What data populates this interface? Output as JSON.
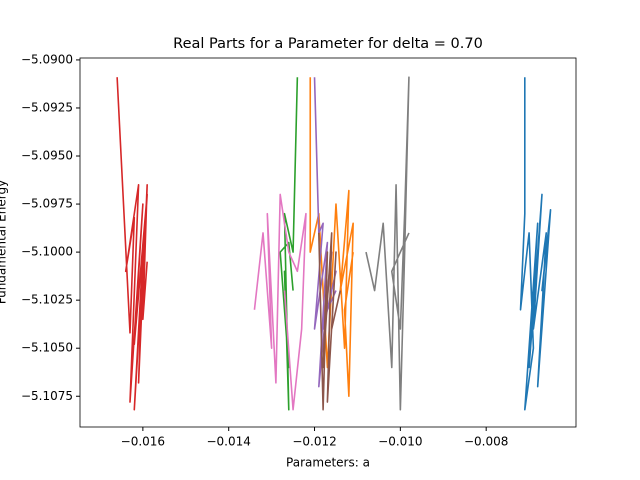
{
  "chart_data": {
    "type": "line",
    "title": "Real Parts for a Parameter for delta = 0.70",
    "xlabel": "Parameters: a",
    "ylabel": "Fundamental Energy",
    "xlim": [
      -0.017465,
      -0.005907
    ],
    "ylim": [
      -5.1091,
      -5.0899
    ],
    "xticks": [
      {
        "value": -0.016,
        "label": "−0.016"
      },
      {
        "value": -0.014,
        "label": "−0.014"
      },
      {
        "value": -0.012,
        "label": "−0.012"
      },
      {
        "value": -0.01,
        "label": "−0.010"
      },
      {
        "value": -0.008,
        "label": "−0.008"
      }
    ],
    "yticks": [
      {
        "value": -5.09,
        "label": "−5.0900"
      },
      {
        "value": -5.0925,
        "label": "−5.0925"
      },
      {
        "value": -5.095,
        "label": "−5.0950"
      },
      {
        "value": -5.0975,
        "label": "−5.0975"
      },
      {
        "value": -5.1,
        "label": "−5.1000"
      },
      {
        "value": -5.1025,
        "label": "−5.1025"
      },
      {
        "value": -5.105,
        "label": "−5.1050"
      },
      {
        "value": -5.1075,
        "label": "−5.1075"
      }
    ],
    "grid": false,
    "series": [
      {
        "color": "#1f77b4",
        "x": [
          -0.0071,
          -0.0071,
          -0.0072,
          -0.007,
          -0.0069,
          -0.0071,
          -0.0068,
          -0.007,
          -0.0067,
          -0.0069,
          -0.0066,
          -0.0068,
          -0.0065,
          -0.0067,
          -0.0066
        ],
        "values": [
          -5.0909,
          -5.098,
          -5.103,
          -5.099,
          -5.105,
          -5.1082,
          -5.0985,
          -5.106,
          -5.097,
          -5.104,
          -5.099,
          -5.107,
          -5.0978,
          -5.102,
          -5.1
        ]
      },
      {
        "color": "#ff7f0e",
        "x": [
          -0.0121,
          -0.0121,
          -0.0119,
          -0.0117,
          -0.0115,
          -0.0113,
          -0.0112,
          -0.0114,
          -0.0111,
          -0.0112,
          -0.0113,
          -0.0111
        ],
        "values": [
          -5.0909,
          -5.1,
          -5.098,
          -5.106,
          -5.0975,
          -5.105,
          -5.0968,
          -5.102,
          -5.0985,
          -5.1075,
          -5.103,
          -5.1
        ]
      },
      {
        "color": "#2ca02c",
        "x": [
          -0.0124,
          -0.0125,
          -0.0127,
          -0.0126,
          -0.0127,
          -0.0126,
          -0.0128,
          -0.0126,
          -0.0125
        ],
        "values": [
          -5.0909,
          -5.1,
          -5.098,
          -5.1082,
          -5.101,
          -5.106,
          -5.1,
          -5.0995,
          -5.102
        ]
      },
      {
        "color": "#d62728",
        "x": [
          -0.0166,
          -0.0163,
          -0.0162,
          -0.0164,
          -0.0161,
          -0.0163,
          -0.016,
          -0.0162,
          -0.0159,
          -0.0162,
          -0.016,
          -0.0161,
          -0.0159,
          -0.016,
          -0.0159
        ],
        "values": [
          -5.0909,
          -5.1042,
          -5.0982,
          -5.101,
          -5.0965,
          -5.1078,
          -5.0975,
          -5.1048,
          -5.097,
          -5.1082,
          -5.1,
          -5.1068,
          -5.0965,
          -5.1035,
          -5.1005
        ]
      },
      {
        "color": "#9467bd",
        "x": [
          -0.012,
          -0.0119,
          -0.0118,
          -0.012,
          -0.0117,
          -0.0119,
          -0.0116,
          -0.0118,
          -0.0115,
          -0.0117,
          -0.0115
        ],
        "values": [
          -5.0909,
          -5.099,
          -5.0985,
          -5.104,
          -5.0995,
          -5.107,
          -5.1,
          -5.104,
          -5.101,
          -5.103,
          -5.102
        ]
      },
      {
        "color": "#8c564b",
        "x": [
          -0.0119,
          -0.0118,
          -0.0117,
          -0.0118,
          -0.0116,
          -0.0117,
          -0.0115,
          -0.0116,
          -0.0114
        ],
        "values": [
          -5.099,
          -5.1082,
          -5.1,
          -5.106,
          -5.099,
          -5.1078,
          -5.1,
          -5.104,
          -5.102
        ]
      },
      {
        "color": "#e377c2",
        "x": [
          -0.0134,
          -0.0132,
          -0.013,
          -0.0131,
          -0.0129,
          -0.0128,
          -0.0126,
          -0.0124,
          -0.0122,
          -0.0123,
          -0.0125,
          -0.0127
        ],
        "values": [
          -5.103,
          -5.099,
          -5.105,
          -5.098,
          -5.1068,
          -5.097,
          -5.1,
          -5.101,
          -5.098,
          -5.104,
          -5.1082,
          -5.102
        ]
      },
      {
        "color": "#7f7f7f",
        "x": [
          -0.0108,
          -0.0106,
          -0.0104,
          -0.0102,
          -0.0101,
          -0.01,
          -0.0099,
          -0.0098,
          -0.0099,
          -0.01,
          -0.0102,
          -0.0098
        ],
        "values": [
          -5.1,
          -5.102,
          -5.0985,
          -5.106,
          -5.0965,
          -5.1082,
          -5.1,
          -5.0909,
          -5.098,
          -5.104,
          -5.101,
          -5.099
        ]
      }
    ]
  }
}
